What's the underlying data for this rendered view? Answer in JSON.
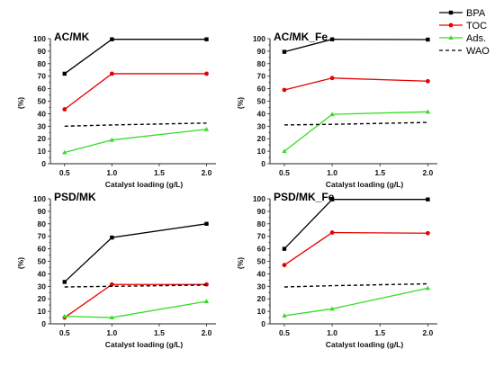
{
  "legend": [
    {
      "label": "BPA",
      "color": "#000000",
      "style": "solid",
      "marker": "square"
    },
    {
      "label": "TOC",
      "color": "#e60000",
      "style": "solid",
      "marker": "circle"
    },
    {
      "label": "Ads.",
      "color": "#33dd22",
      "style": "solid",
      "marker": "triangle"
    },
    {
      "label": "WAO",
      "color": "#000000",
      "style": "dashed",
      "marker": "none"
    }
  ],
  "chart_data": [
    {
      "type": "line",
      "title": "AC/MK",
      "xlabel": "Catalyst loading (g/L)",
      "ylabel": "(%)",
      "x": [
        0.5,
        1.0,
        2.0
      ],
      "xticks": [
        "0.5",
        "1.0",
        "1.5",
        "2.0"
      ],
      "yticks": [
        "0",
        "10",
        "20",
        "30",
        "40",
        "50",
        "60",
        "70",
        "80",
        "90",
        "100"
      ],
      "ylim": [
        0,
        100
      ],
      "series": [
        {
          "name": "BPA",
          "values": [
            72,
            99.5,
            99.5
          ]
        },
        {
          "name": "TOC",
          "values": [
            43.5,
            72,
            72
          ]
        },
        {
          "name": "Ads.",
          "values": [
            9,
            19,
            27.5
          ]
        },
        {
          "name": "WAO",
          "values": [
            30,
            31,
            32.5
          ]
        }
      ]
    },
    {
      "type": "line",
      "title": "AC/MK_Fe",
      "xlabel": "Catalyst loading (g/L)",
      "ylabel": "(%)",
      "x": [
        0.5,
        1.0,
        2.0
      ],
      "xticks": [
        "0.5",
        "1.0",
        "1.5",
        "2.0"
      ],
      "yticks": [
        "0",
        "10",
        "20",
        "30",
        "40",
        "50",
        "60",
        "70",
        "80",
        "90",
        "100"
      ],
      "ylim": [
        0,
        100
      ],
      "series": [
        {
          "name": "BPA",
          "values": [
            89.5,
            99.5,
            99.3
          ]
        },
        {
          "name": "TOC",
          "values": [
            59,
            68.5,
            66
          ]
        },
        {
          "name": "Ads.",
          "values": [
            10,
            39.5,
            41.5
          ]
        },
        {
          "name": "WAO",
          "values": [
            31,
            31.5,
            33
          ]
        }
      ]
    },
    {
      "type": "line",
      "title": "PSD/MK",
      "xlabel": "Catalyst loading (g/L)",
      "ylabel": "(%)",
      "x": [
        0.5,
        1.0,
        2.0
      ],
      "xticks": [
        "0.5",
        "1.0",
        "1.5",
        "2.0"
      ],
      "yticks": [
        "0",
        "10",
        "20",
        "30",
        "40",
        "50",
        "60",
        "70",
        "80",
        "90",
        "100"
      ],
      "ylim": [
        0,
        100
      ],
      "series": [
        {
          "name": "BPA",
          "values": [
            33.5,
            69,
            80
          ]
        },
        {
          "name": "TOC",
          "values": [
            5,
            31.5,
            31.5
          ]
        },
        {
          "name": "Ads.",
          "values": [
            6,
            5,
            18
          ]
        },
        {
          "name": "WAO",
          "values": [
            29.5,
            30,
            31
          ]
        }
      ]
    },
    {
      "type": "line",
      "title": "PSD/MK_Fe",
      "xlabel": "Catalyst loading (g/L)",
      "ylabel": "(%)",
      "x": [
        0.5,
        1.0,
        2.0
      ],
      "xticks": [
        "0.5",
        "1.0",
        "1.5",
        "2.0"
      ],
      "yticks": [
        "0",
        "10",
        "20",
        "30",
        "40",
        "50",
        "60",
        "70",
        "80",
        "90",
        "100"
      ],
      "ylim": [
        0,
        100
      ],
      "series": [
        {
          "name": "BPA",
          "values": [
            60,
            99.5,
            99.5
          ]
        },
        {
          "name": "TOC",
          "values": [
            47,
            73,
            72.5
          ]
        },
        {
          "name": "Ads.",
          "values": [
            6.5,
            12,
            28.5
          ]
        },
        {
          "name": "WAO",
          "values": [
            29.5,
            30.5,
            32
          ]
        }
      ]
    }
  ]
}
